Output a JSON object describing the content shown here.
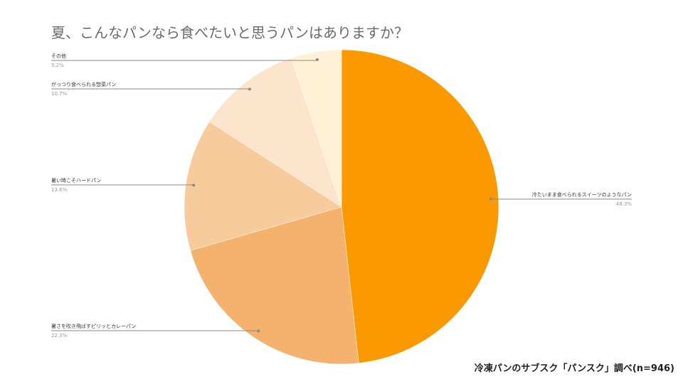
{
  "chart_data": {
    "type": "pie",
    "title": "夏、こんなパンなら食べたいと思うパンはありますか？",
    "start_angle_deg": 0,
    "direction": "clockwise",
    "slices": [
      {
        "label": "冷たいまま食べられるスイーツのようなパン",
        "value": 48.3,
        "value_label": "48.3%",
        "color": "#FB9A00"
      },
      {
        "label": "暑さを吹き飛ばすピリッとカレーパン",
        "value": 22.3,
        "value_label": "22.3%",
        "color": "#F5B26E"
      },
      {
        "label": "暑い時こそハードパン",
        "value": 13.6,
        "value_label": "13.6%",
        "color": "#F8CB9C"
      },
      {
        "label": "がっつり食べられる惣菜パン",
        "value": 10.7,
        "value_label": "10.7%",
        "color": "#FCE4CD"
      },
      {
        "label": "その他",
        "value": 5.2,
        "value_label": "5.2%",
        "color": "#FFF1D6"
      }
    ]
  },
  "footer": {
    "note": "冷凍パンのサブスク「パンスク」調べ(n=946)"
  }
}
